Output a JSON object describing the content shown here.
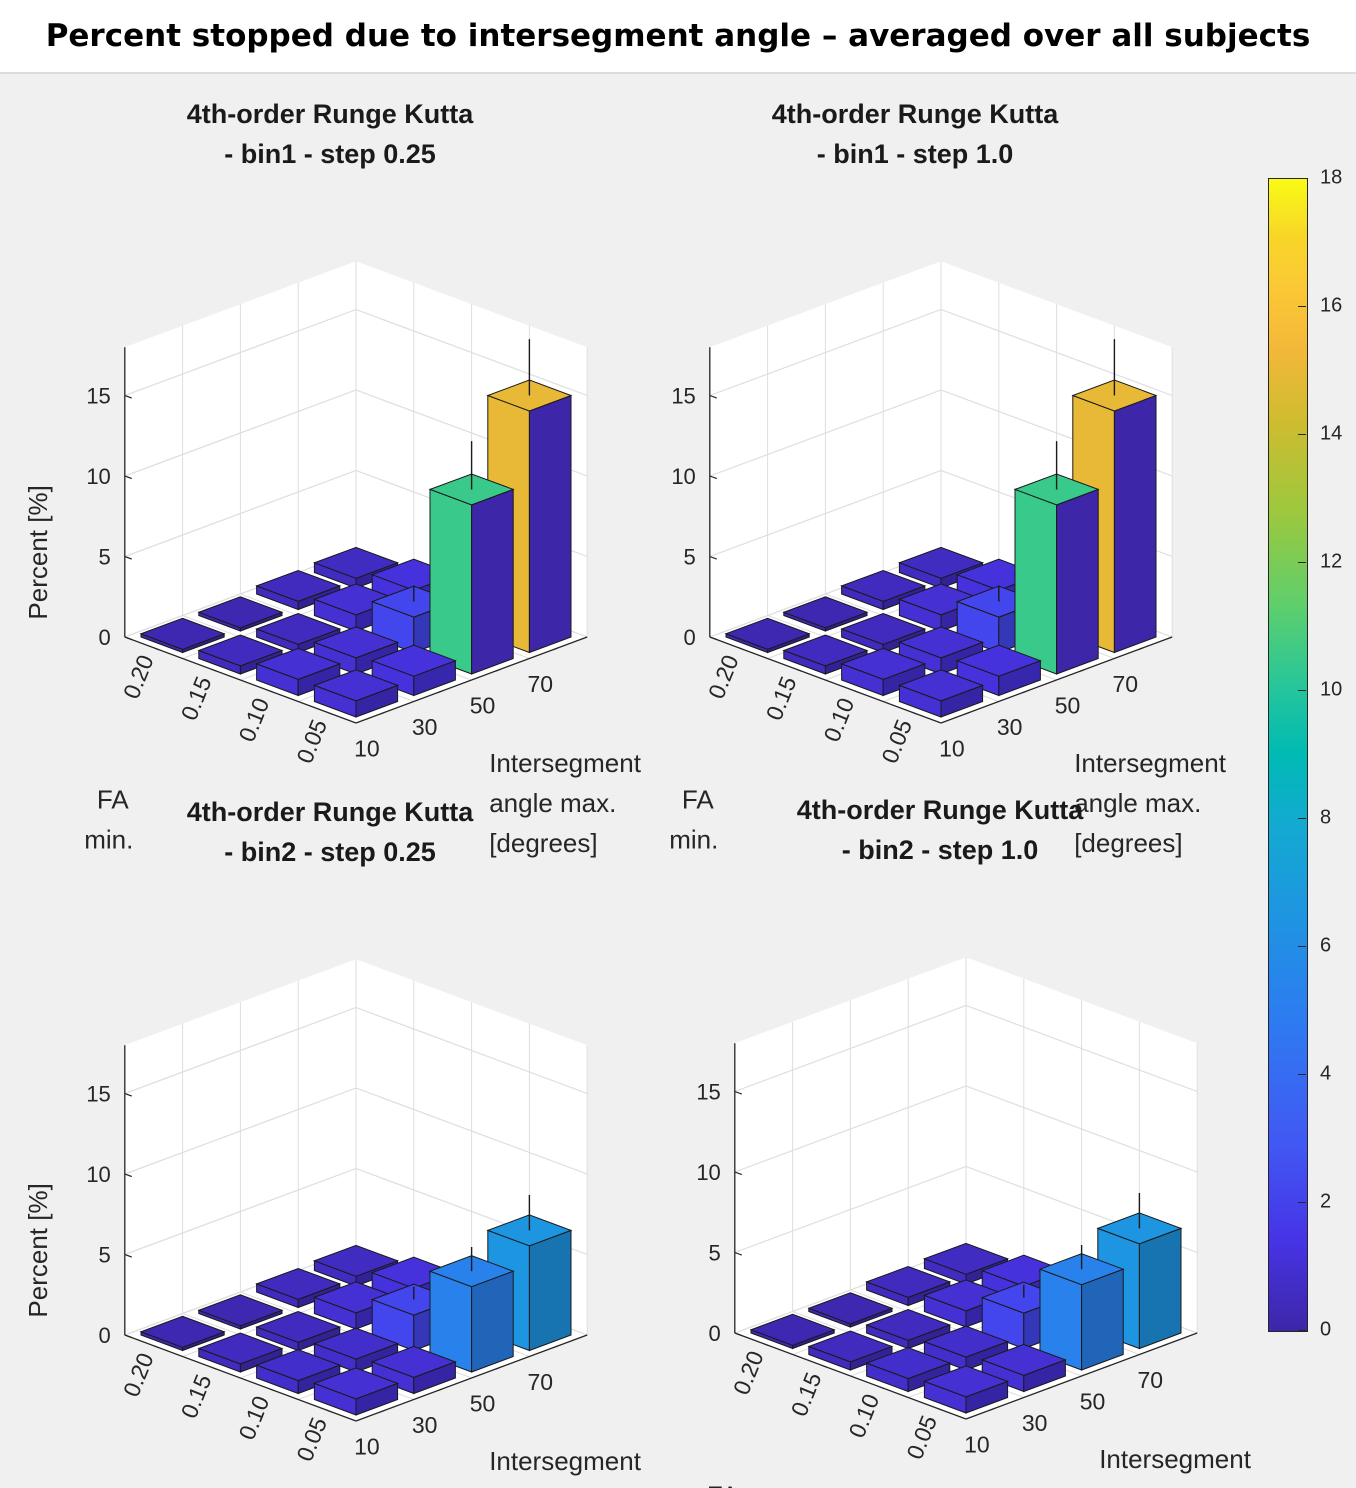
{
  "figure_title": "Percent stopped due to intersegment angle – averaged over all subjects",
  "chart_data": {
    "type": "bar3",
    "z_label": "Percent [%]",
    "fa_label": [
      "FA",
      "min."
    ],
    "angle_label": [
      "Intersegment",
      "angle max.",
      "[degrees]"
    ],
    "fa_ticks": [
      "0.20",
      "0.15",
      "0.10",
      "0.05"
    ],
    "angle_ticks": [
      "10",
      "30",
      "50",
      "70"
    ],
    "z_ticks": [
      "0",
      "5",
      "10",
      "15"
    ],
    "zlim": [
      0,
      18
    ],
    "colorbar": {
      "min": 0,
      "max": 18,
      "ticks": [
        "0",
        "2",
        "4",
        "6",
        "8",
        "10",
        "12",
        "14",
        "16",
        "18"
      ]
    },
    "panels": [
      {
        "title_line1": "4th-order Runge Kutta",
        "title_line2": "- bin1 - step 0.25",
        "values": [
          [
            1.0,
            1.0,
            0.5,
            0.2
          ],
          [
            1.2,
            1.0,
            0.5,
            0.2
          ],
          [
            10.5,
            2.2,
            1.0,
            0.5
          ],
          [
            15.0,
            2.5,
            1.2,
            0.6
          ]
        ],
        "errors": [
          [
            0,
            0,
            0,
            0
          ],
          [
            0,
            0,
            0,
            0
          ],
          [
            3.0,
            1.0,
            0,
            0
          ],
          [
            3.5,
            0,
            0,
            0
          ]
        ],
        "show_zlabel": true
      },
      {
        "title_line1": "4th-order Runge Kutta",
        "title_line2": "- bin1 - step 1.0",
        "values": [
          [
            1.0,
            1.0,
            0.5,
            0.2
          ],
          [
            1.2,
            1.0,
            0.5,
            0.2
          ],
          [
            10.5,
            2.2,
            1.0,
            0.5
          ],
          [
            15.0,
            2.5,
            1.2,
            0.6
          ]
        ],
        "errors": [
          [
            0,
            0,
            0,
            0
          ],
          [
            0,
            0,
            0,
            0
          ],
          [
            3.0,
            1.0,
            0,
            0
          ],
          [
            3.5,
            0,
            0,
            0
          ]
        ],
        "show_zlabel": false
      },
      {
        "title_line1": "4th-order Runge Kutta",
        "title_line2": "- bin2 - step 0.25",
        "values": [
          [
            1.0,
            0.8,
            0.5,
            0.2
          ],
          [
            1.0,
            0.8,
            0.5,
            0.2
          ],
          [
            5.3,
            2.2,
            1.0,
            0.5
          ],
          [
            6.5,
            2.5,
            1.2,
            0.6
          ]
        ],
        "errors": [
          [
            0,
            0,
            0,
            0
          ],
          [
            0,
            0,
            0,
            0
          ],
          [
            1.5,
            0.8,
            0,
            0
          ],
          [
            2.2,
            0,
            0,
            0
          ]
        ],
        "show_zlabel": true
      },
      {
        "title_line1": "4th-order Runge Kutta",
        "title_line2": "- bin2 - step 1.0",
        "values": [
          [
            1.0,
            0.8,
            0.5,
            0.2
          ],
          [
            1.0,
            0.8,
            0.5,
            0.2
          ],
          [
            5.3,
            2.2,
            1.0,
            0.5
          ],
          [
            6.5,
            2.5,
            1.2,
            0.6
          ]
        ],
        "errors": [
          [
            0,
            0,
            0,
            0
          ],
          [
            0,
            0,
            0,
            0
          ],
          [
            1.5,
            0.8,
            0,
            0
          ],
          [
            2.2,
            0,
            0,
            0
          ]
        ],
        "show_zlabel": false
      }
    ]
  }
}
